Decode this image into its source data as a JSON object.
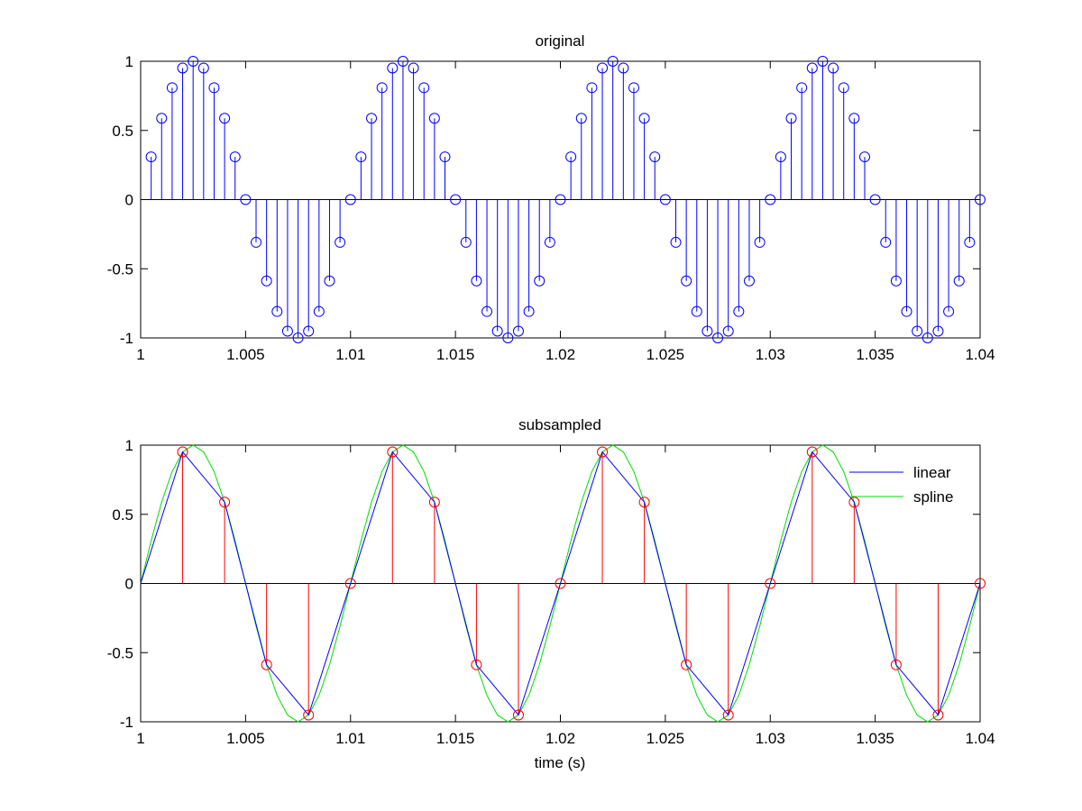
{
  "figure": {
    "background": "#ffffff",
    "axes_color": "#000000"
  },
  "chart_data": [
    {
      "type": "stem",
      "title": "original",
      "xlabel": "",
      "ylabel": "",
      "xlim": [
        1,
        1.04
      ],
      "ylim": [
        -1,
        1
      ],
      "grid": false,
      "xticks": [
        1,
        1.005,
        1.01,
        1.015,
        1.02,
        1.025,
        1.03,
        1.035,
        1.04
      ],
      "xtick_labels": [
        "1",
        "1.005",
        "1.01",
        "1.015",
        "1.02",
        "1.025",
        "1.03",
        "1.035",
        "1.04"
      ],
      "yticks": [
        -1,
        -0.5,
        0,
        0.5,
        1
      ],
      "ytick_labels": [
        "-1",
        "-0.5",
        "0",
        "0.5",
        "1"
      ],
      "series": [
        {
          "marker": "circle",
          "color": "#0000ff",
          "x": [
            1.0005,
            1.001,
            1.0015,
            1.002,
            1.0025,
            1.003,
            1.0035,
            1.004,
            1.0045,
            1.005,
            1.0055,
            1.006,
            1.0065,
            1.007,
            1.0075,
            1.008,
            1.0085,
            1.009,
            1.0095,
            1.01,
            1.0105,
            1.011,
            1.0115,
            1.012,
            1.0125,
            1.013,
            1.0135,
            1.014,
            1.0145,
            1.015,
            1.0155,
            1.016,
            1.0165,
            1.017,
            1.0175,
            1.018,
            1.0185,
            1.019,
            1.0195,
            1.02,
            1.0205,
            1.021,
            1.0215,
            1.022,
            1.0225,
            1.023,
            1.0235,
            1.024,
            1.0245,
            1.025,
            1.0255,
            1.026,
            1.0265,
            1.027,
            1.0275,
            1.028,
            1.0285,
            1.029,
            1.0295,
            1.03,
            1.0305,
            1.031,
            1.0315,
            1.032,
            1.0325,
            1.033,
            1.0335,
            1.034,
            1.0345,
            1.035,
            1.0355,
            1.036,
            1.0365,
            1.037,
            1.0375,
            1.038,
            1.0385,
            1.039,
            1.0395,
            1.04
          ],
          "y": [
            0.309,
            0.588,
            0.809,
            0.951,
            1,
            0.951,
            0.809,
            0.588,
            0.309,
            0,
            -0.309,
            -0.588,
            -0.809,
            -0.951,
            -1,
            -0.951,
            -0.809,
            -0.588,
            -0.309,
            0,
            0.309,
            0.588,
            0.809,
            0.951,
            1,
            0.951,
            0.809,
            0.588,
            0.309,
            0,
            -0.309,
            -0.588,
            -0.809,
            -0.951,
            -1,
            -0.951,
            -0.809,
            -0.588,
            -0.309,
            0,
            0.309,
            0.588,
            0.809,
            0.951,
            1,
            0.951,
            0.809,
            0.588,
            0.309,
            0,
            -0.309,
            -0.588,
            -0.809,
            -0.951,
            -1,
            -0.951,
            -0.809,
            -0.588,
            -0.309,
            0,
            0.309,
            0.588,
            0.809,
            0.951,
            1,
            0.951,
            0.809,
            0.588,
            0.309,
            0,
            -0.309,
            -0.588,
            -0.809,
            -0.951,
            -1,
            -0.951,
            -0.809,
            -0.588,
            -0.309,
            0
          ]
        }
      ]
    },
    {
      "type": "line",
      "title": "subsampled",
      "xlabel": "time (s)",
      "ylabel": "",
      "xlim": [
        1,
        1.04
      ],
      "ylim": [
        -1,
        1
      ],
      "grid": false,
      "legend_position": "top-right",
      "xticks": [
        1,
        1.005,
        1.01,
        1.015,
        1.02,
        1.025,
        1.03,
        1.035,
        1.04
      ],
      "xtick_labels": [
        "1",
        "1.005",
        "1.01",
        "1.015",
        "1.02",
        "1.025",
        "1.03",
        "1.035",
        "1.04"
      ],
      "yticks": [
        -1,
        -0.5,
        0,
        0.5,
        1
      ],
      "ytick_labels": [
        "-1",
        "-0.5",
        "0",
        "0.5",
        "1"
      ],
      "stems": {
        "marker": "circle",
        "color": "#ff0000",
        "x": [
          1.002,
          1.004,
          1.006,
          1.008,
          1.01,
          1.012,
          1.014,
          1.016,
          1.018,
          1.02,
          1.022,
          1.024,
          1.026,
          1.028,
          1.03,
          1.032,
          1.034,
          1.036,
          1.038,
          1.04
        ],
        "y": [
          0.951,
          0.588,
          -0.588,
          -0.951,
          0,
          0.951,
          0.588,
          -0.588,
          -0.951,
          0,
          0.951,
          0.588,
          -0.588,
          -0.951,
          0,
          0.951,
          0.588,
          -0.588,
          -0.951,
          0
        ]
      },
      "series": [
        {
          "name": "linear",
          "color": "#0000ff",
          "x": [
            1,
            1.002,
            1.004,
            1.006,
            1.008,
            1.01,
            1.012,
            1.014,
            1.016,
            1.018,
            1.02,
            1.022,
            1.024,
            1.026,
            1.028,
            1.03,
            1.032,
            1.034,
            1.036,
            1.038,
            1.04
          ],
          "y": [
            0,
            0.951,
            0.588,
            -0.588,
            -0.951,
            0,
            0.951,
            0.588,
            -0.588,
            -0.951,
            0,
            0.951,
            0.588,
            -0.588,
            -0.951,
            0,
            0.951,
            0.588,
            -0.588,
            -0.951,
            0
          ]
        },
        {
          "name": "spline",
          "color": "#00dd00",
          "x": [
            1,
            1.0005,
            1.001,
            1.0015,
            1.002,
            1.0025,
            1.003,
            1.0035,
            1.004,
            1.0045,
            1.005,
            1.0055,
            1.006,
            1.0065,
            1.007,
            1.0075,
            1.008,
            1.0085,
            1.009,
            1.0095,
            1.01,
            1.0105,
            1.011,
            1.0115,
            1.012,
            1.0125,
            1.013,
            1.0135,
            1.014,
            1.0145,
            1.015,
            1.0155,
            1.016,
            1.0165,
            1.017,
            1.0175,
            1.018,
            1.0185,
            1.019,
            1.0195,
            1.02,
            1.0205,
            1.021,
            1.0215,
            1.022,
            1.0225,
            1.023,
            1.0235,
            1.024,
            1.0245,
            1.025,
            1.0255,
            1.026,
            1.0265,
            1.027,
            1.0275,
            1.028,
            1.0285,
            1.029,
            1.0295,
            1.03,
            1.0305,
            1.031,
            1.0315,
            1.032,
            1.0325,
            1.033,
            1.0335,
            1.034,
            1.0345,
            1.035,
            1.0355,
            1.036,
            1.0365,
            1.037,
            1.0375,
            1.038,
            1.0385,
            1.039,
            1.0395,
            1.04
          ],
          "y": [
            0,
            0.309,
            0.588,
            0.809,
            0.951,
            1,
            0.951,
            0.809,
            0.588,
            0.309,
            0,
            -0.309,
            -0.588,
            -0.809,
            -0.951,
            -1,
            -0.951,
            -0.809,
            -0.588,
            -0.309,
            0,
            0.309,
            0.588,
            0.809,
            0.951,
            1,
            0.951,
            0.809,
            0.588,
            0.309,
            0,
            -0.309,
            -0.588,
            -0.809,
            -0.951,
            -1,
            -0.951,
            -0.809,
            -0.588,
            -0.309,
            0,
            0.309,
            0.588,
            0.809,
            0.951,
            1,
            0.951,
            0.809,
            0.588,
            0.309,
            0,
            -0.309,
            -0.588,
            -0.809,
            -0.951,
            -1,
            -0.951,
            -0.809,
            -0.588,
            -0.309,
            0,
            0.309,
            0.588,
            0.809,
            0.951,
            1,
            0.951,
            0.809,
            0.588,
            0.309,
            0,
            -0.309,
            -0.588,
            -0.809,
            -0.951,
            -1,
            -0.951,
            -0.809,
            -0.588,
            -0.309,
            0
          ]
        }
      ]
    }
  ]
}
